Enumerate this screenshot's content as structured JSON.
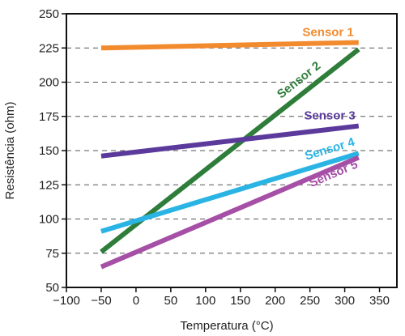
{
  "chart_data": {
    "type": "line",
    "title": "",
    "xlabel": "Temperatura (°C)",
    "ylabel": "Resistência (ohm)",
    "xlim": [
      -100,
      375
    ],
    "ylim": [
      50,
      250
    ],
    "xticks": [
      -100,
      -50,
      0,
      50,
      100,
      150,
      200,
      250,
      300,
      350
    ],
    "xtick_labels": [
      "−100",
      "−50",
      "0",
      "50",
      "100",
      "150",
      "200",
      "250",
      "300",
      "350"
    ],
    "yticks": [
      50,
      75,
      100,
      125,
      150,
      175,
      200,
      225,
      250
    ],
    "ytick_labels": [
      "50",
      "75",
      "100",
      "125",
      "150",
      "175",
      "200",
      "225",
      "250"
    ],
    "grid": "horizontal dashed",
    "series": [
      {
        "name": "Sensor 1",
        "color": "#f28a2e",
        "x": [
          -50,
          320
        ],
        "y": [
          225,
          229
        ]
      },
      {
        "name": "Sensor 2",
        "color": "#2e7d3a",
        "x": [
          -50,
          320
        ],
        "y": [
          76,
          224
        ]
      },
      {
        "name": "Sensor 3",
        "color": "#5b3a9c",
        "x": [
          -50,
          320
        ],
        "y": [
          146,
          168
        ]
      },
      {
        "name": "Sensor 4",
        "color": "#2ab4e4",
        "x": [
          -50,
          320
        ],
        "y": [
          91,
          148
        ]
      },
      {
        "name": "Sensor 5",
        "color": "#a64fa6",
        "x": [
          -50,
          320
        ],
        "y": [
          65,
          145
        ]
      }
    ]
  }
}
